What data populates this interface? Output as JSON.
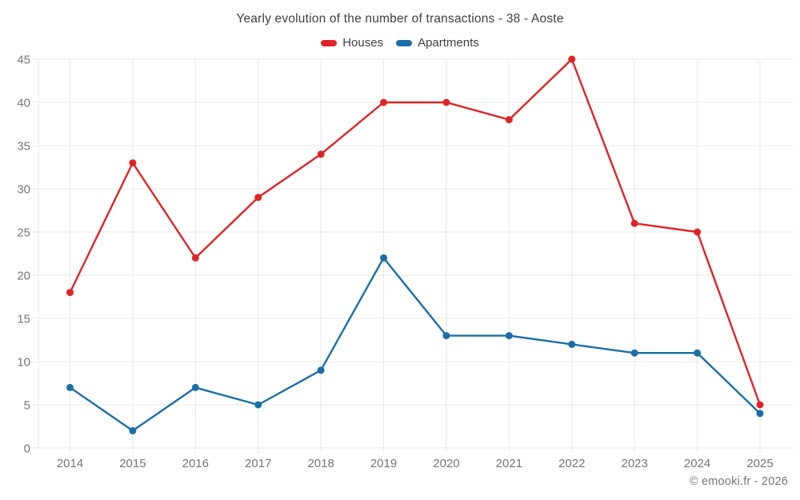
{
  "title": "Yearly evolution of the number of transactions - 38 - Aoste",
  "footer": "© emooki.fr - 2026",
  "colors": {
    "houses": "#e02426",
    "apartments": "#1a6fa8",
    "grid": "#e8e8e8",
    "tick_text": "#757575",
    "title_text": "#3f3f3f",
    "footer_text": "#757575"
  },
  "chart_data": {
    "type": "line",
    "title": "Yearly evolution of the number of transactions - 38 - Aoste",
    "categories": [
      "2014",
      "2015",
      "2016",
      "2017",
      "2018",
      "2019",
      "2020",
      "2021",
      "2022",
      "2023",
      "2024",
      "2025"
    ],
    "series": [
      {
        "name": "Houses",
        "color": "#e02426",
        "values": [
          18,
          33,
          22,
          29,
          34,
          40,
          40,
          38,
          45,
          26,
          25,
          5
        ]
      },
      {
        "name": "Apartments",
        "color": "#1a6fa8",
        "values": [
          7,
          2,
          7,
          5,
          9,
          22,
          13,
          13,
          12,
          11,
          11,
          4
        ]
      }
    ],
    "xlabel": "",
    "ylabel": "",
    "ylim": [
      0,
      45
    ],
    "ytick_step": 5,
    "grid": true,
    "legend_position": "top",
    "marker": "circle",
    "annotation": "© emooki.fr - 2026"
  }
}
